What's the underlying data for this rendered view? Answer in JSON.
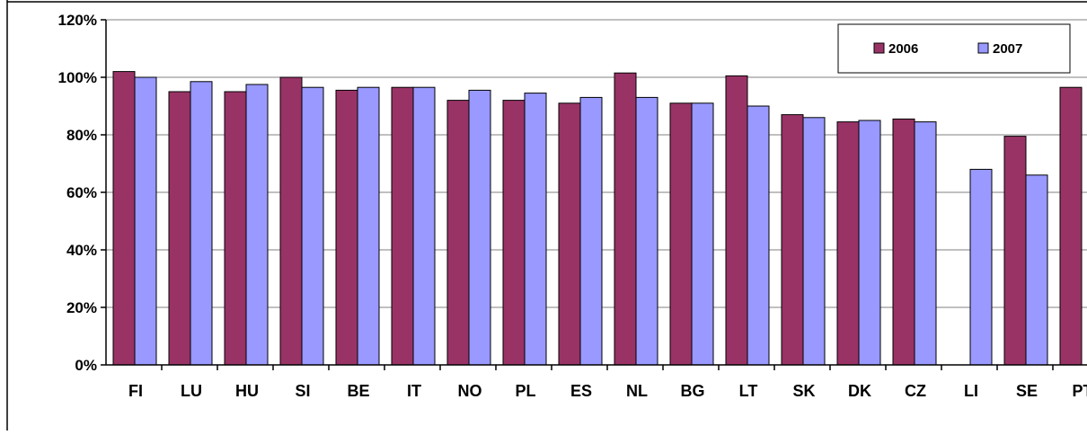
{
  "chart_data": {
    "type": "bar",
    "categories": [
      "FI",
      "LU",
      "HU",
      "SI",
      "BE",
      "IT",
      "NO",
      "PL",
      "ES",
      "NL",
      "BG",
      "LT",
      "SK",
      "DK",
      "CZ",
      "LI",
      "SE",
      "PT"
    ],
    "series": [
      {
        "name": "2006",
        "color": "#993366",
        "values": [
          102,
          95,
          95,
          100,
          95.5,
          96.5,
          92,
          92,
          91,
          101.5,
          91,
          100.5,
          87,
          84.5,
          85.5,
          null,
          79.5,
          96.5
        ]
      },
      {
        "name": "2007",
        "color": "#9999ff",
        "values": [
          100,
          98.5,
          97.5,
          96.5,
          96.5,
          96.5,
          95.5,
          94.5,
          93,
          93,
          91,
          90,
          86,
          85,
          84.5,
          68,
          66,
          null
        ]
      }
    ],
    "y_ticks": [
      "0%",
      "20%",
      "40%",
      "60%",
      "80%",
      "100%",
      "120%"
    ],
    "ylim": [
      0,
      120
    ],
    "grid": true,
    "legend_position": "top-right",
    "title": "",
    "xlabel": "",
    "ylabel": ""
  }
}
